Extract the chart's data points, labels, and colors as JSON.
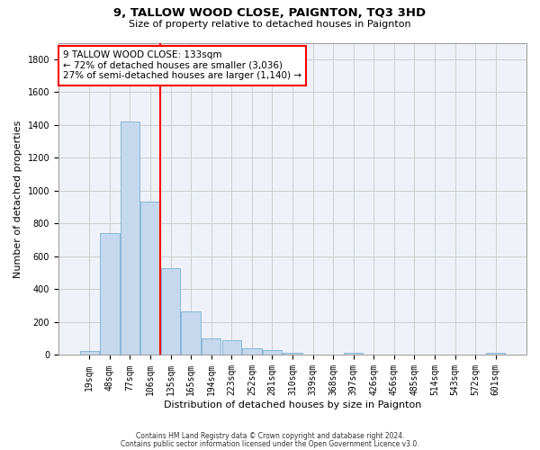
{
  "title": "9, TALLOW WOOD CLOSE, PAIGNTON, TQ3 3HD",
  "subtitle": "Size of property relative to detached houses in Paignton",
  "xlabel": "Distribution of detached houses by size in Paignton",
  "ylabel": "Number of detached properties",
  "footer_line1": "Contains HM Land Registry data © Crown copyright and database right 2024.",
  "footer_line2": "Contains public sector information licensed under the Open Government Licence v3.0.",
  "bin_labels": [
    "19sqm",
    "48sqm",
    "77sqm",
    "106sqm",
    "135sqm",
    "165sqm",
    "194sqm",
    "223sqm",
    "252sqm",
    "281sqm",
    "310sqm",
    "339sqm",
    "368sqm",
    "397sqm",
    "426sqm",
    "456sqm",
    "485sqm",
    "514sqm",
    "543sqm",
    "572sqm",
    "601sqm"
  ],
  "bar_values": [
    22,
    740,
    1420,
    935,
    530,
    265,
    103,
    92,
    40,
    28,
    15,
    0,
    0,
    14,
    0,
    0,
    0,
    0,
    0,
    0,
    14
  ],
  "bar_color": "#c5d8ed",
  "bar_edgecolor": "#7aafd4",
  "grid_color": "#cccccc",
  "bg_color": "#ffffff",
  "plot_bg_color": "#eef2f8",
  "vline_color": "red",
  "vline_bin_index": 4,
  "annotation_text": "9 TALLOW WOOD CLOSE: 133sqm\n← 72% of detached houses are smaller (3,036)\n27% of semi-detached houses are larger (1,140) →",
  "annotation_box_color": "red",
  "ylim": [
    0,
    1900
  ],
  "yticks": [
    0,
    200,
    400,
    600,
    800,
    1000,
    1200,
    1400,
    1600,
    1800
  ],
  "title_fontsize": 9.5,
  "subtitle_fontsize": 8,
  "ylabel_fontsize": 8,
  "xlabel_fontsize": 8,
  "tick_fontsize": 7,
  "annot_fontsize": 7.5,
  "footer_fontsize": 5.5
}
